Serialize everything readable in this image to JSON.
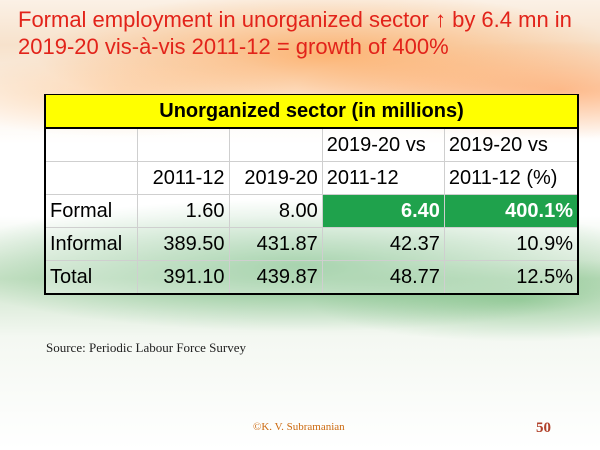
{
  "slide": {
    "title": "Formal employment in unorganized sector ↑ by 6.4 mn in 2019-20 vis-à-vis 2011-12 = growth of 400%",
    "colors": {
      "title": "#e2231a",
      "header_fill": "#ffff00",
      "highlight_fill": "#1fa24c"
    }
  },
  "table": {
    "caption": "Unorganized sector (in millions)",
    "columns": [
      {
        "line1": "",
        "line2": ""
      },
      {
        "line1": "",
        "line2": "2011-12"
      },
      {
        "line1": "",
        "line2": "2019-20"
      },
      {
        "line1": "2019-20 vs",
        "line2": "2011-12"
      },
      {
        "line1": "2019-20 vs",
        "line2": "2011-12 (%)"
      }
    ],
    "rows": [
      {
        "label": "Formal",
        "v2011": "1.60",
        "v2020": "8.00",
        "diff": "6.40",
        "pct": "400.1%"
      },
      {
        "label": "Informal",
        "v2011": "389.50",
        "v2020": "431.87",
        "diff": "42.37",
        "pct": "10.9%"
      },
      {
        "label": "Total",
        "v2011": "391.10",
        "v2020": "439.87",
        "diff": "48.77",
        "pct": "12.5%"
      }
    ]
  },
  "footer": {
    "source": "Source: Periodic Labour Force Survey",
    "copyright": "©K. V. Subramanian",
    "page_number": "50"
  }
}
